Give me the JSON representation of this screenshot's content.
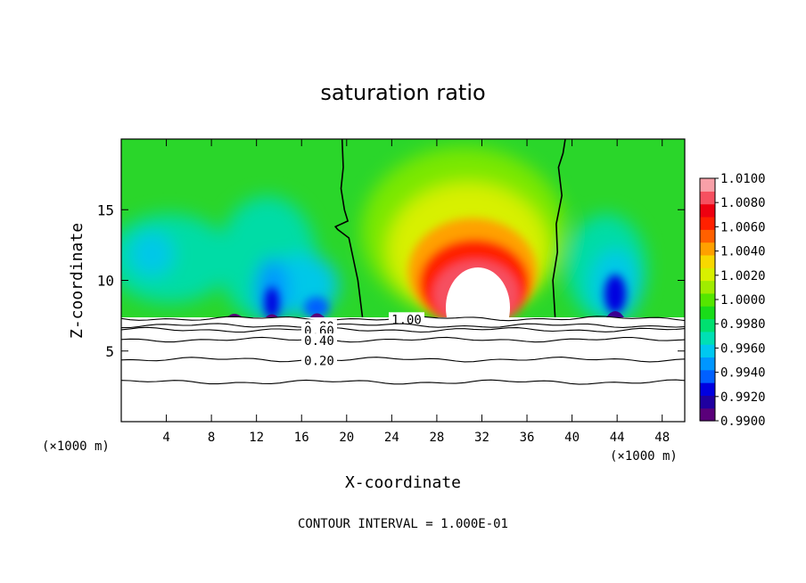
{
  "chart_data": {
    "type": "heatmap",
    "title": "saturation ratio",
    "xlabel": "X-coordinate",
    "ylabel": "Z-coordinate",
    "x_unit_left": "(×1000 m)",
    "x_unit_right": "(×1000 m)",
    "xlim": [
      0,
      50
    ],
    "ylim": [
      0,
      20
    ],
    "xticks": [
      4,
      8,
      12,
      16,
      20,
      24,
      28,
      32,
      36,
      40,
      44,
      48
    ],
    "yticks": [
      5,
      10,
      15
    ],
    "footer": "CONTOUR INTERVAL = 1.000E-01",
    "colorbar": {
      "range": [
        0.99,
        1.01
      ],
      "labels": [
        "1.0100",
        "1.0080",
        "1.0060",
        "1.0040",
        "1.0020",
        "1.0000",
        "0.9980",
        "0.9960",
        "0.9940",
        "0.9920",
        "0.9900"
      ],
      "colors": [
        "#5a007a",
        "#1f00a0",
        "#0000e0",
        "#0060ff",
        "#0096ff",
        "#00c8f0",
        "#00e0b4",
        "#00e070",
        "#19dc19",
        "#55e600",
        "#a0ec00",
        "#d8f000",
        "#f8d800",
        "#ffa000",
        "#ff6000",
        "#ff2000",
        "#ee0010",
        "#f65060",
        "#f8a0a8"
      ]
    },
    "cloud_base_z": 7.3,
    "contours": [
      {
        "label": "1.00",
        "z": 7.3
      },
      {
        "label": "0.80",
        "z": 6.8
      },
      {
        "label": "0.60",
        "z": 6.5
      },
      {
        "label": "0.40",
        "z": 5.8
      },
      {
        "label": "0.20",
        "z": 4.4
      },
      {
        "label": "",
        "z": 2.8
      }
    ],
    "saturation_lines": [
      {
        "x": [
          19.6,
          19.7,
          19.5,
          19.8,
          20.1,
          19.0,
          19.2,
          20.2,
          21.0,
          21.4
        ],
        "z": [
          20.0,
          18.0,
          16.5,
          15.0,
          14.2,
          13.8,
          13.6,
          13.0,
          10.0,
          7.4
        ]
      },
      {
        "x": [
          39.4,
          39.2,
          38.8,
          39.1,
          38.6,
          38.7,
          38.3,
          38.5
        ],
        "z": [
          20.0,
          19.0,
          18.0,
          16.0,
          14.0,
          12.0,
          10.0,
          7.4
        ]
      }
    ]
  }
}
